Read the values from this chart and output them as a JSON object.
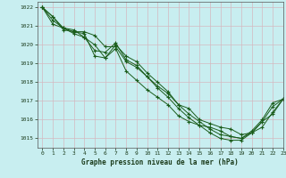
{
  "title": "",
  "xlabel": "Graphe pression niveau de la mer (hPa)",
  "ylabel": "",
  "bg_color": "#c8eef0",
  "grid_color": "#d4b8c0",
  "line_color": "#1a5c1a",
  "xlim": [
    -0.5,
    23
  ],
  "ylim": [
    1014.5,
    1022.3
  ],
  "yticks": [
    1015,
    1016,
    1017,
    1018,
    1019,
    1020,
    1021,
    1022
  ],
  "xticks": [
    0,
    1,
    2,
    3,
    4,
    5,
    6,
    7,
    8,
    9,
    10,
    11,
    12,
    13,
    14,
    15,
    16,
    17,
    18,
    19,
    20,
    21,
    22,
    23
  ],
  "series": [
    [
      1022.0,
      1021.5,
      1020.8,
      1020.7,
      1020.7,
      1020.5,
      1019.9,
      1019.9,
      1019.1,
      1018.8,
      1018.3,
      1017.8,
      1017.4,
      1016.8,
      1016.6,
      1016.0,
      1015.8,
      1015.6,
      1015.5,
      1015.2,
      1015.3,
      1015.6,
      1016.4,
      1017.1
    ],
    [
      1022.0,
      1021.5,
      1020.9,
      1020.7,
      1020.6,
      1019.4,
      1019.3,
      1020.0,
      1019.4,
      1019.1,
      1018.5,
      1018.0,
      1017.5,
      1016.8,
      1016.3,
      1015.9,
      1015.5,
      1015.2,
      1015.1,
      1015.0,
      1015.4,
      1016.0,
      1016.9,
      1017.1
    ],
    [
      1022.0,
      1021.1,
      1020.9,
      1020.8,
      1020.4,
      1020.0,
      1019.3,
      1019.8,
      1018.6,
      1018.1,
      1017.6,
      1017.2,
      1016.8,
      1016.2,
      1015.9,
      1015.7,
      1015.6,
      1015.4,
      1015.1,
      1015.0,
      1015.3,
      1015.9,
      1016.7,
      1017.1
    ],
    [
      1022.0,
      1021.3,
      1020.9,
      1020.6,
      1020.4,
      1019.7,
      1019.6,
      1020.1,
      1019.2,
      1018.9,
      1018.3,
      1017.7,
      1017.2,
      1016.6,
      1016.1,
      1015.7,
      1015.3,
      1015.0,
      1014.9,
      1014.9,
      1015.3,
      1015.9,
      1016.3,
      1017.1
    ]
  ]
}
